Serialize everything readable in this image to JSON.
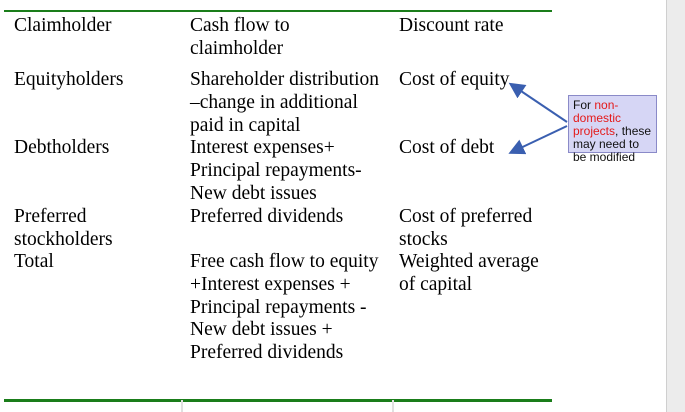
{
  "table": {
    "headers": [
      "Claimholder",
      "Cash flow to\nclaimholder",
      "Discount rate"
    ],
    "rows": [
      {
        "claimholder": "Equityholders",
        "cash_flow": "Shareholder distribution\n–change in additional\npaid in capital",
        "discount_rate": "Cost of equity"
      },
      {
        "claimholder": "Debtholders",
        "cash_flow": "Interest expenses+\nPrincipal repayments-\nNew debt issues",
        "discount_rate": "Cost of debt"
      },
      {
        "claimholder": "Preferred\nstockholders",
        "cash_flow": "Preferred dividends",
        "discount_rate": "Cost of preferred\nstocks"
      },
      {
        "claimholder": "Total",
        "cash_flow": "Free cash flow to equity\n+Interest expenses +\nPrincipal repayments -\nNew debt issues +\nPreferred dividends",
        "discount_rate": "Weighted average\nof capital"
      }
    ]
  },
  "callout": {
    "prefix": "For ",
    "highlight": "non-domestic projects",
    "suffix": ", these may need to be modified",
    "highlight_color": "#e41a1a",
    "background": "#d6d6f5",
    "arrow_color": "#3a5fb0"
  },
  "colors": {
    "rule": "#1a7d1a"
  }
}
